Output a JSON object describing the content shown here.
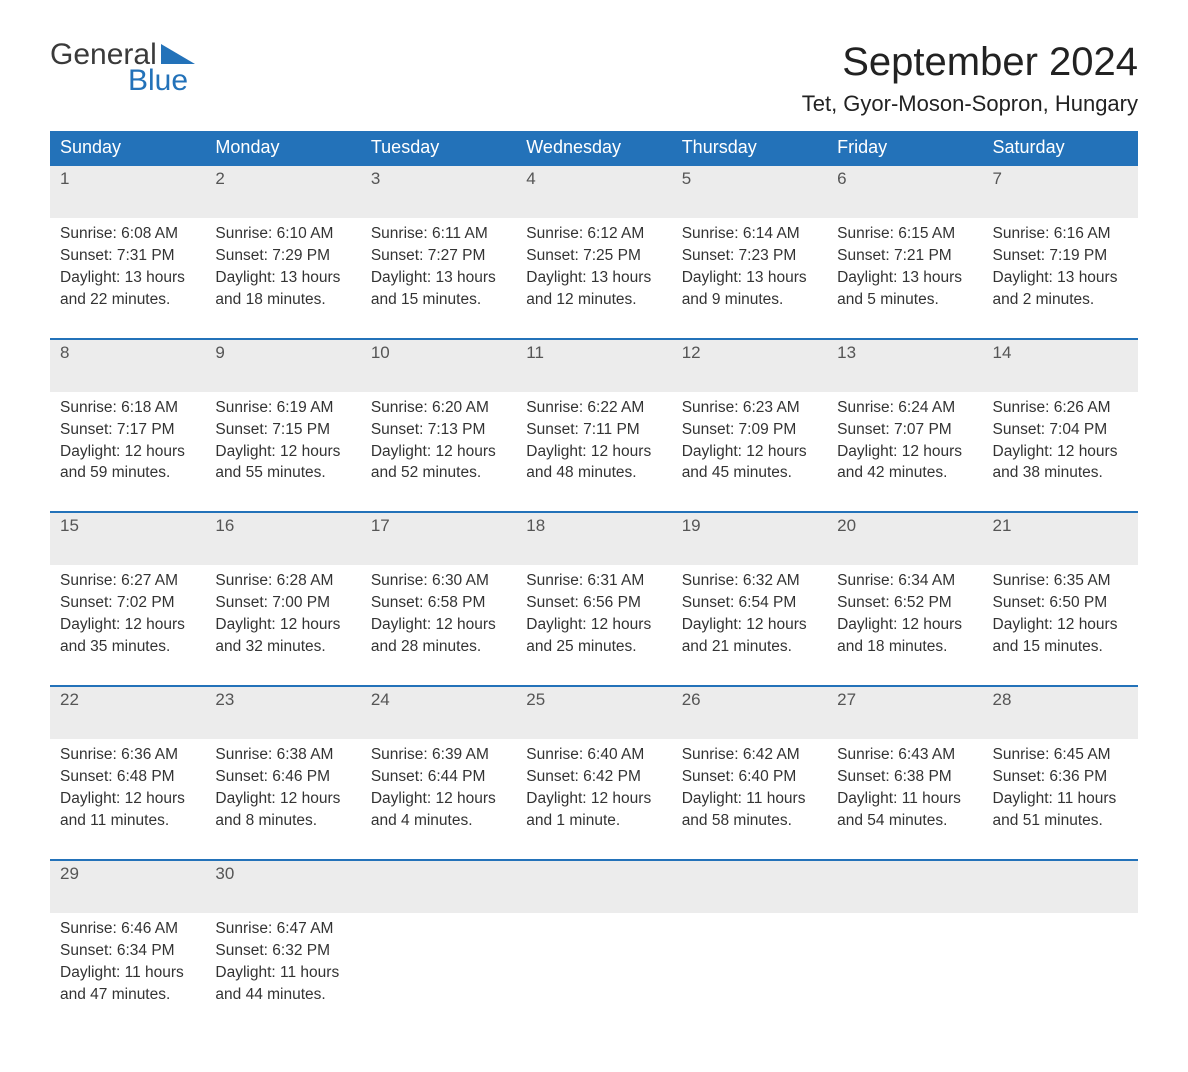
{
  "logo": {
    "line1": "General",
    "line2": "Blue",
    "accent_color": "#2372b9"
  },
  "title": "September 2024",
  "location": "Tet, Gyor-Moson-Sopron, Hungary",
  "colors": {
    "header_bg": "#2372b9",
    "header_text": "#ffffff",
    "daynum_bg": "#ececec",
    "row_border": "#2372b9",
    "page_bg": "#ffffff",
    "text": "#333333"
  },
  "fonts": {
    "title_size_pt": 30,
    "header_size_pt": 14,
    "body_size_pt": 12
  },
  "layout": {
    "columns": 7,
    "rows": 5
  },
  "weekdays": [
    "Sunday",
    "Monday",
    "Tuesday",
    "Wednesday",
    "Thursday",
    "Friday",
    "Saturday"
  ],
  "days": [
    {
      "n": "1",
      "sunrise": "Sunrise: 6:08 AM",
      "sunset": "Sunset: 7:31 PM",
      "dl1": "Daylight: 13 hours",
      "dl2": "and 22 minutes."
    },
    {
      "n": "2",
      "sunrise": "Sunrise: 6:10 AM",
      "sunset": "Sunset: 7:29 PM",
      "dl1": "Daylight: 13 hours",
      "dl2": "and 18 minutes."
    },
    {
      "n": "3",
      "sunrise": "Sunrise: 6:11 AM",
      "sunset": "Sunset: 7:27 PM",
      "dl1": "Daylight: 13 hours",
      "dl2": "and 15 minutes."
    },
    {
      "n": "4",
      "sunrise": "Sunrise: 6:12 AM",
      "sunset": "Sunset: 7:25 PM",
      "dl1": "Daylight: 13 hours",
      "dl2": "and 12 minutes."
    },
    {
      "n": "5",
      "sunrise": "Sunrise: 6:14 AM",
      "sunset": "Sunset: 7:23 PM",
      "dl1": "Daylight: 13 hours",
      "dl2": "and 9 minutes."
    },
    {
      "n": "6",
      "sunrise": "Sunrise: 6:15 AM",
      "sunset": "Sunset: 7:21 PM",
      "dl1": "Daylight: 13 hours",
      "dl2": "and 5 minutes."
    },
    {
      "n": "7",
      "sunrise": "Sunrise: 6:16 AM",
      "sunset": "Sunset: 7:19 PM",
      "dl1": "Daylight: 13 hours",
      "dl2": "and 2 minutes."
    },
    {
      "n": "8",
      "sunrise": "Sunrise: 6:18 AM",
      "sunset": "Sunset: 7:17 PM",
      "dl1": "Daylight: 12 hours",
      "dl2": "and 59 minutes."
    },
    {
      "n": "9",
      "sunrise": "Sunrise: 6:19 AM",
      "sunset": "Sunset: 7:15 PM",
      "dl1": "Daylight: 12 hours",
      "dl2": "and 55 minutes."
    },
    {
      "n": "10",
      "sunrise": "Sunrise: 6:20 AM",
      "sunset": "Sunset: 7:13 PM",
      "dl1": "Daylight: 12 hours",
      "dl2": "and 52 minutes."
    },
    {
      "n": "11",
      "sunrise": "Sunrise: 6:22 AM",
      "sunset": "Sunset: 7:11 PM",
      "dl1": "Daylight: 12 hours",
      "dl2": "and 48 minutes."
    },
    {
      "n": "12",
      "sunrise": "Sunrise: 6:23 AM",
      "sunset": "Sunset: 7:09 PM",
      "dl1": "Daylight: 12 hours",
      "dl2": "and 45 minutes."
    },
    {
      "n": "13",
      "sunrise": "Sunrise: 6:24 AM",
      "sunset": "Sunset: 7:07 PM",
      "dl1": "Daylight: 12 hours",
      "dl2": "and 42 minutes."
    },
    {
      "n": "14",
      "sunrise": "Sunrise: 6:26 AM",
      "sunset": "Sunset: 7:04 PM",
      "dl1": "Daylight: 12 hours",
      "dl2": "and 38 minutes."
    },
    {
      "n": "15",
      "sunrise": "Sunrise: 6:27 AM",
      "sunset": "Sunset: 7:02 PM",
      "dl1": "Daylight: 12 hours",
      "dl2": "and 35 minutes."
    },
    {
      "n": "16",
      "sunrise": "Sunrise: 6:28 AM",
      "sunset": "Sunset: 7:00 PM",
      "dl1": "Daylight: 12 hours",
      "dl2": "and 32 minutes."
    },
    {
      "n": "17",
      "sunrise": "Sunrise: 6:30 AM",
      "sunset": "Sunset: 6:58 PM",
      "dl1": "Daylight: 12 hours",
      "dl2": "and 28 minutes."
    },
    {
      "n": "18",
      "sunrise": "Sunrise: 6:31 AM",
      "sunset": "Sunset: 6:56 PM",
      "dl1": "Daylight: 12 hours",
      "dl2": "and 25 minutes."
    },
    {
      "n": "19",
      "sunrise": "Sunrise: 6:32 AM",
      "sunset": "Sunset: 6:54 PM",
      "dl1": "Daylight: 12 hours",
      "dl2": "and 21 minutes."
    },
    {
      "n": "20",
      "sunrise": "Sunrise: 6:34 AM",
      "sunset": "Sunset: 6:52 PM",
      "dl1": "Daylight: 12 hours",
      "dl2": "and 18 minutes."
    },
    {
      "n": "21",
      "sunrise": "Sunrise: 6:35 AM",
      "sunset": "Sunset: 6:50 PM",
      "dl1": "Daylight: 12 hours",
      "dl2": "and 15 minutes."
    },
    {
      "n": "22",
      "sunrise": "Sunrise: 6:36 AM",
      "sunset": "Sunset: 6:48 PM",
      "dl1": "Daylight: 12 hours",
      "dl2": "and 11 minutes."
    },
    {
      "n": "23",
      "sunrise": "Sunrise: 6:38 AM",
      "sunset": "Sunset: 6:46 PM",
      "dl1": "Daylight: 12 hours",
      "dl2": "and 8 minutes."
    },
    {
      "n": "24",
      "sunrise": "Sunrise: 6:39 AM",
      "sunset": "Sunset: 6:44 PM",
      "dl1": "Daylight: 12 hours",
      "dl2": "and 4 minutes."
    },
    {
      "n": "25",
      "sunrise": "Sunrise: 6:40 AM",
      "sunset": "Sunset: 6:42 PM",
      "dl1": "Daylight: 12 hours",
      "dl2": "and 1 minute."
    },
    {
      "n": "26",
      "sunrise": "Sunrise: 6:42 AM",
      "sunset": "Sunset: 6:40 PM",
      "dl1": "Daylight: 11 hours",
      "dl2": "and 58 minutes."
    },
    {
      "n": "27",
      "sunrise": "Sunrise: 6:43 AM",
      "sunset": "Sunset: 6:38 PM",
      "dl1": "Daylight: 11 hours",
      "dl2": "and 54 minutes."
    },
    {
      "n": "28",
      "sunrise": "Sunrise: 6:45 AM",
      "sunset": "Sunset: 6:36 PM",
      "dl1": "Daylight: 11 hours",
      "dl2": "and 51 minutes."
    },
    {
      "n": "29",
      "sunrise": "Sunrise: 6:46 AM",
      "sunset": "Sunset: 6:34 PM",
      "dl1": "Daylight: 11 hours",
      "dl2": "and 47 minutes."
    },
    {
      "n": "30",
      "sunrise": "Sunrise: 6:47 AM",
      "sunset": "Sunset: 6:32 PM",
      "dl1": "Daylight: 11 hours",
      "dl2": "and 44 minutes."
    }
  ]
}
